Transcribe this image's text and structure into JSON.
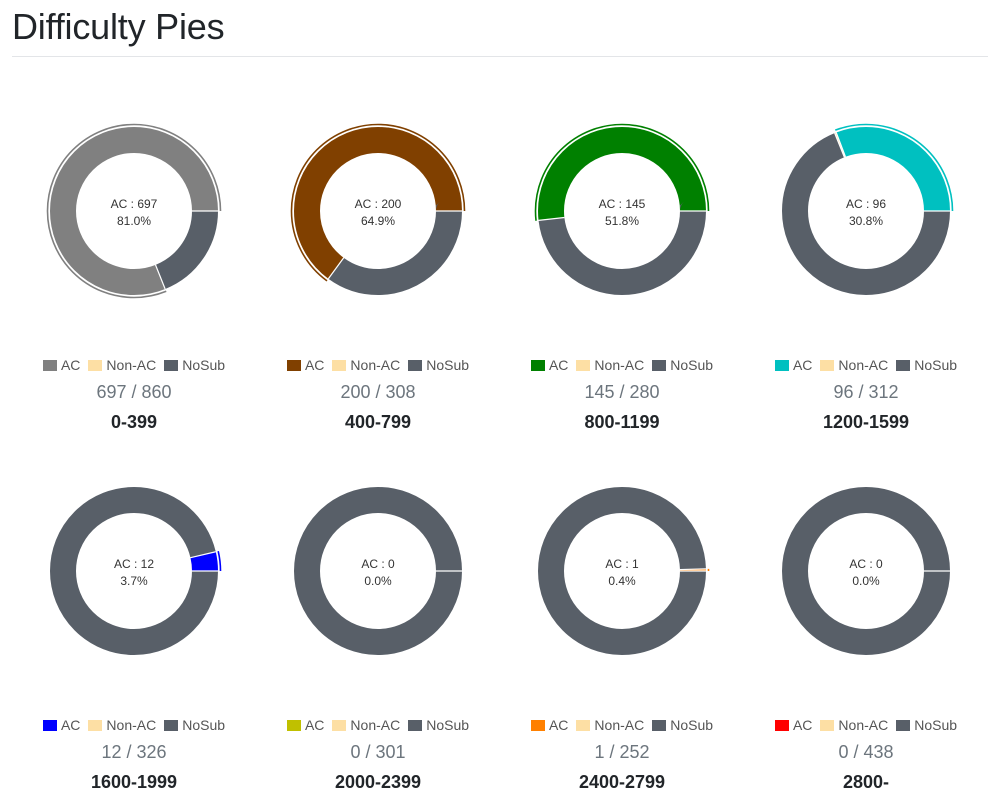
{
  "page": {
    "title": "Difficulty Pies"
  },
  "colors": {
    "nonac": "#fddfa4",
    "nosub": "#585f68"
  },
  "legend_labels": {
    "ac": "AC",
    "nonac": "Non-AC",
    "nosub": "NoSub"
  },
  "chart_data": [
    {
      "type": "pie",
      "range": "0-399",
      "ac": 697,
      "nonac": 0,
      "total": 860,
      "ac_text": "AC : 697",
      "percent_text": "81.0%",
      "solved_text": "697 / 860",
      "ac_color": "#808080"
    },
    {
      "type": "pie",
      "range": "400-799",
      "ac": 200,
      "nonac": 0,
      "total": 308,
      "ac_text": "AC : 200",
      "percent_text": "64.9%",
      "solved_text": "200 / 308",
      "ac_color": "#804000"
    },
    {
      "type": "pie",
      "range": "800-1199",
      "ac": 145,
      "nonac": 0,
      "total": 280,
      "ac_text": "AC : 145",
      "percent_text": "51.8%",
      "solved_text": "145 / 280",
      "ac_color": "#008000"
    },
    {
      "type": "pie",
      "range": "1200-1599",
      "ac": 96,
      "nonac": 1,
      "total": 312,
      "ac_text": "AC : 96",
      "percent_text": "30.8%",
      "solved_text": "96 / 312",
      "ac_color": "#00c0c0"
    },
    {
      "type": "pie",
      "range": "1600-1999",
      "ac": 12,
      "nonac": 0,
      "total": 326,
      "ac_text": "AC : 12",
      "percent_text": "3.7%",
      "solved_text": "12 / 326",
      "ac_color": "#0000ff"
    },
    {
      "type": "pie",
      "range": "2000-2399",
      "ac": 0,
      "nonac": 0,
      "total": 301,
      "ac_text": "AC : 0",
      "percent_text": "0.0%",
      "solved_text": "0 / 301",
      "ac_color": "#c0c000"
    },
    {
      "type": "pie",
      "range": "2400-2799",
      "ac": 1,
      "nonac": 0,
      "total": 252,
      "ac_text": "AC : 1",
      "percent_text": "0.4%",
      "solved_text": "1 / 252",
      "ac_color": "#ff8000"
    },
    {
      "type": "pie",
      "range": "2800-",
      "ac": 0,
      "nonac": 0,
      "total": 438,
      "ac_text": "AC : 0",
      "percent_text": "0.0%",
      "solved_text": "0 / 438",
      "ac_color": "#ff0000"
    }
  ]
}
